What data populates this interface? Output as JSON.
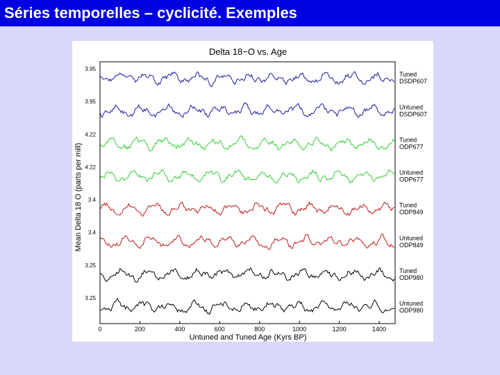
{
  "slide": {
    "title": "Séries temporelles – cyclicité. Exemples",
    "background": "#d8d8f8",
    "title_bar_color": "#0000e0"
  },
  "chart_data": {
    "type": "line",
    "title": "Delta 18−O vs. Age",
    "xlabel": "Untuned and Tuned Age (Kyrs BP)",
    "ylabel": "Mean Delta 18  O (parts per mill)",
    "xlim": [
      0,
      1120
    ],
    "x_ticks": [
      "0",
      "200",
      "400",
      "600",
      "800",
      "1000",
      "1200",
      "1400"
    ],
    "grid": false,
    "legend": "right",
    "series": [
      {
        "name": "Tuned DSDP607",
        "color": "#1a1aa0",
        "baseline_label": "3.95"
      },
      {
        "name": "Untuned DSDP607",
        "color": "#1a1aa0",
        "baseline_label": "3.95"
      },
      {
        "name": "Tuned ODP677",
        "color": "#33cc33",
        "baseline_label": "4.22"
      },
      {
        "name": "Untuned ODP677",
        "color": "#33cc33",
        "baseline_label": "4.22"
      },
      {
        "name": "Tuned ODP849",
        "color": "#c01818",
        "baseline_label": "3.4"
      },
      {
        "name": "Untuned ODP849",
        "color": "#c01818",
        "baseline_label": "3.4"
      },
      {
        "name": "Tuned ODP980",
        "color": "#000000",
        "baseline_label": "3.25"
      },
      {
        "name": "Untuned ODP980",
        "color": "#000000",
        "baseline_label": "3.25"
      }
    ]
  }
}
